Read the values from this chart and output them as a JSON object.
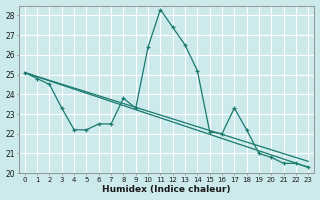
{
  "xlabel": "Humidex (Indice chaleur)",
  "bg_color": "#cce9ec",
  "grid_color": "#b0d8dc",
  "line_color": "#1a7a6e",
  "xlim": [
    -0.5,
    23.5
  ],
  "ylim": [
    20,
    28.5
  ],
  "yticks": [
    20,
    21,
    22,
    23,
    24,
    25,
    26,
    27,
    28
  ],
  "xticks": [
    0,
    1,
    2,
    3,
    4,
    5,
    6,
    7,
    8,
    9,
    10,
    11,
    12,
    13,
    14,
    15,
    16,
    17,
    18,
    19,
    20,
    21,
    22,
    23
  ],
  "series1_x": [
    0,
    1,
    2,
    3,
    4,
    5,
    6,
    7,
    8,
    9,
    10,
    11,
    12,
    13,
    14,
    15,
    16,
    17,
    18,
    19,
    20,
    21,
    22,
    23
  ],
  "series1_y": [
    25.1,
    24.8,
    24.5,
    23.3,
    22.2,
    22.2,
    22.5,
    22.5,
    23.8,
    23.3,
    26.4,
    28.3,
    27.4,
    26.5,
    25.2,
    22.1,
    22.0,
    23.3,
    22.2,
    21.0,
    20.8,
    20.5,
    20.5,
    20.3
  ],
  "series2_x": [
    0,
    23
  ],
  "series2_y": [
    25.1,
    20.6
  ],
  "series3_x": [
    0,
    23
  ],
  "series3_y": [
    25.1,
    20.3
  ],
  "xtick_fontsize": 5.0,
  "ytick_fontsize": 5.5,
  "xlabel_fontsize": 6.5
}
